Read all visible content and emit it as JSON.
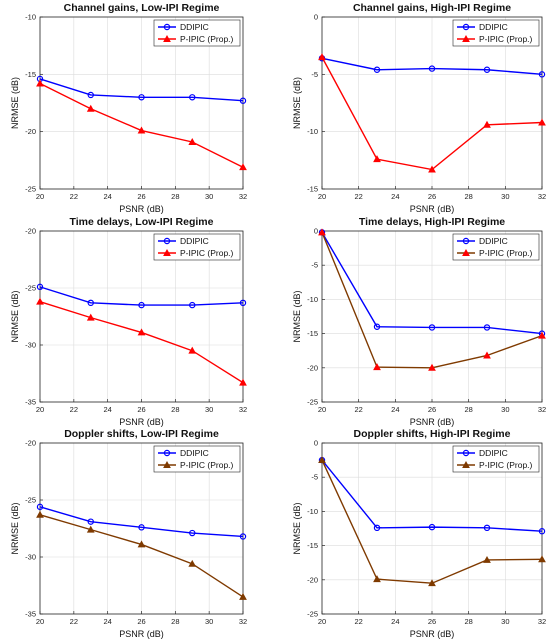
{
  "chart_data": [
    {
      "type": "line",
      "title": "Channel gains, Low-IPI Regime",
      "xlabel": "PSNR (dB)",
      "ylabel": "NRMSE (dB)",
      "x": [
        20,
        23,
        26,
        29,
        32
      ],
      "xlim": [
        20,
        32
      ],
      "ylim": [
        -25,
        -10
      ],
      "xticks": [
        20,
        22,
        24,
        26,
        28,
        30,
        32
      ],
      "yticks": [
        -25,
        -20,
        -15,
        -10
      ],
      "grid": true,
      "legend_position": "top-right",
      "series": [
        {
          "name": "DDIPIC",
          "color": "#0000ff",
          "marker": "circle",
          "values": [
            -15.4,
            -16.8,
            -17.0,
            -17.0,
            -17.3
          ]
        },
        {
          "name": "P-IPIC (Prop.)",
          "color": "#ff0000",
          "marker": "triangle",
          "values": [
            -15.8,
            -18.0,
            -19.9,
            -20.9,
            -23.1
          ]
        }
      ]
    },
    {
      "type": "line",
      "title": "Channel gains, High-IPI Regime",
      "xlabel": "PSNR (dB)",
      "ylabel": "NRMSE (dB)",
      "x": [
        20,
        23,
        26,
        29,
        32
      ],
      "xlim": [
        20,
        32
      ],
      "ylim": [
        -15,
        0
      ],
      "xticks": [
        20,
        22,
        24,
        26,
        28,
        30,
        32
      ],
      "yticks": [
        -15,
        -10,
        -5,
        0
      ],
      "grid": true,
      "legend_position": "top-right",
      "series": [
        {
          "name": "DDIPIC",
          "color": "#0000ff",
          "marker": "circle",
          "values": [
            -3.6,
            -4.6,
            -4.5,
            -4.6,
            -5.0
          ]
        },
        {
          "name": "P-IPIC (Prop.)",
          "color": "#ff0000",
          "marker": "triangle",
          "values": [
            -3.5,
            -12.4,
            -13.3,
            -9.4,
            -9.2
          ]
        }
      ]
    },
    {
      "type": "line",
      "title": "Time delays, Low-IPI Regime",
      "xlabel": "PSNR (dB)",
      "ylabel": "NRMSE (dB)",
      "x": [
        20,
        23,
        26,
        29,
        32
      ],
      "xlim": [
        20,
        32
      ],
      "ylim": [
        -35,
        -20
      ],
      "xticks": [
        20,
        22,
        24,
        26,
        28,
        30,
        32
      ],
      "yticks": [
        -35,
        -30,
        -25,
        -20
      ],
      "grid": true,
      "legend_position": "top-right",
      "series": [
        {
          "name": "DDIPIC",
          "color": "#0000ff",
          "marker": "circle",
          "values": [
            -24.9,
            -26.3,
            -26.5,
            -26.5,
            -26.3
          ]
        },
        {
          "name": "P-IPIC (Prop.)",
          "color": "#ff0000",
          "marker": "triangle",
          "values": [
            -26.2,
            -27.6,
            -28.9,
            -30.5,
            -33.3
          ]
        }
      ]
    },
    {
      "type": "line",
      "title": "Time delays, High-IPI Regime",
      "xlabel": "PSNR (dB)",
      "ylabel": "NRMSE (dB)",
      "x": [
        20,
        23,
        26,
        29,
        32
      ],
      "xlim": [
        20,
        32
      ],
      "ylim": [
        -25,
        0
      ],
      "xticks": [
        20,
        22,
        24,
        26,
        28,
        30,
        32
      ],
      "yticks": [
        -25,
        -20,
        -15,
        -10,
        -5,
        0
      ],
      "grid": true,
      "legend_position": "top-right",
      "series": [
        {
          "name": "DDIPIC",
          "color": "#0000ff",
          "marker": "circle",
          "values": [
            -0.2,
            -14.0,
            -14.1,
            -14.1,
            -15.0
          ]
        },
        {
          "name": "P-IPIC (Prop.)",
          "color": "#ff0000",
          "line_color": "#7f3a00",
          "marker": "triangle",
          "values": [
            -0.2,
            -19.9,
            -20.0,
            -18.2,
            -15.3
          ]
        }
      ]
    },
    {
      "type": "line",
      "title": "Doppler shifts, Low-IPI Regime",
      "xlabel": "PSNR (dB)",
      "ylabel": "NRMSE (dB)",
      "x": [
        20,
        23,
        26,
        29,
        32
      ],
      "xlim": [
        20,
        32
      ],
      "ylim": [
        -35,
        -20
      ],
      "xticks": [
        20,
        22,
        24,
        26,
        28,
        30,
        32
      ],
      "yticks": [
        -35,
        -30,
        -25,
        -20
      ],
      "grid": true,
      "legend_position": "top-right",
      "series": [
        {
          "name": "DDIPIC",
          "color": "#0000ff",
          "marker": "circle",
          "values": [
            -25.6,
            -26.9,
            -27.4,
            -27.9,
            -28.2
          ]
        },
        {
          "name": "P-IPIC (Prop.)",
          "color": "#7f3a00",
          "marker": "triangle",
          "values": [
            -26.3,
            -27.6,
            -28.9,
            -30.6,
            -33.5
          ]
        }
      ]
    },
    {
      "type": "line",
      "title": "Doppler shifts, High-IPI Regime",
      "xlabel": "PSNR (dB)",
      "ylabel": "NRMSE (dB)",
      "x": [
        20,
        23,
        26,
        29,
        32
      ],
      "xlim": [
        20,
        32
      ],
      "ylim": [
        -25,
        0
      ],
      "xticks": [
        20,
        22,
        24,
        26,
        28,
        30,
        32
      ],
      "yticks": [
        -25,
        -20,
        -15,
        -10,
        -5,
        0
      ],
      "grid": true,
      "legend_position": "top-right",
      "series": [
        {
          "name": "DDIPIC",
          "color": "#0000ff",
          "marker": "circle",
          "values": [
            -2.5,
            -12.4,
            -12.3,
            -12.4,
            -12.9
          ]
        },
        {
          "name": "P-IPIC (Prop.)",
          "color": "#7f3a00",
          "marker": "triangle",
          "values": [
            -2.5,
            -19.9,
            -20.5,
            -17.1,
            -17.0
          ]
        }
      ]
    }
  ]
}
